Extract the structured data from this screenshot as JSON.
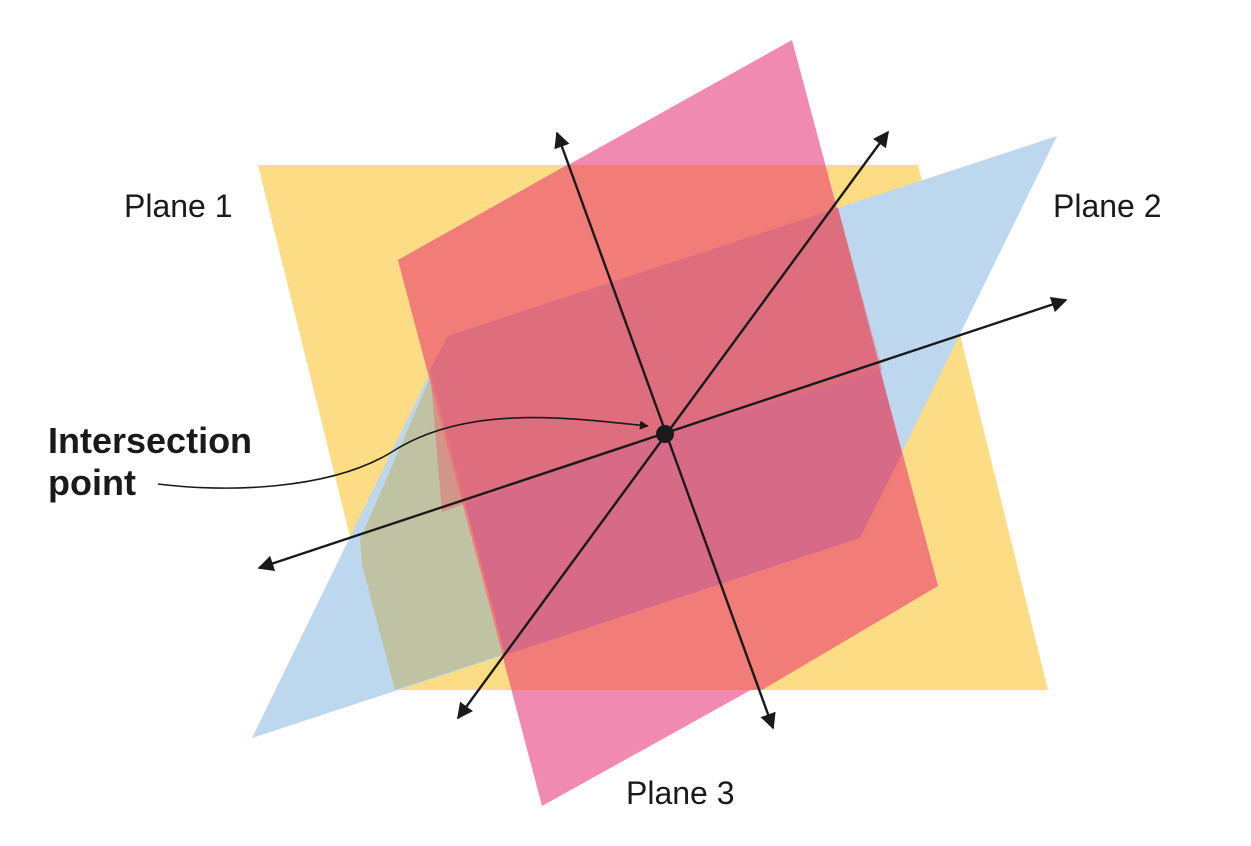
{
  "labels": {
    "plane_1": "Plane 1",
    "plane_2": "Plane 2",
    "plane_3": "Plane 3",
    "intersection_line1": "Intersection",
    "intersection_line2": "point"
  },
  "colors": {
    "plane_1": "#fcdc84",
    "plane_2": "#bdd7ee",
    "plane_3": "#f18ab0",
    "overlap_1_3": "#f27c78",
    "overlap_2_3": "#d76a87",
    "overlap_1_2": "#bfc3a4",
    "axis": "#1a1a1a",
    "point": "#1a1a1a"
  },
  "elements": [
    "three planes",
    "three intersection lines",
    "intersection point",
    "callout leader"
  ]
}
